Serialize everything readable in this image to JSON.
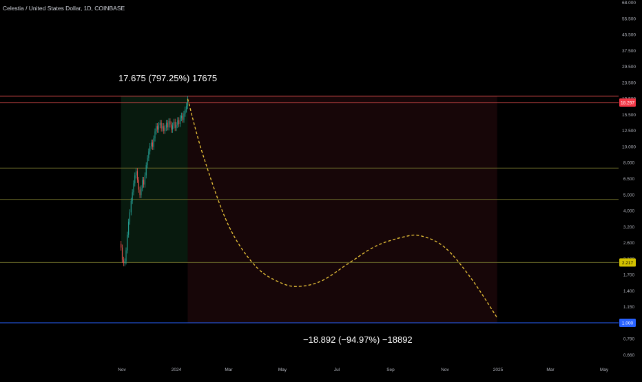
{
  "header": {
    "symbol_title": "Celestia / United States Dollar, 1D, COINBASE"
  },
  "annotations": {
    "gain_measure": "17.675 (797.25%) 17675",
    "loss_measure": "−18.892 (−94.97%) −18892"
  },
  "colors": {
    "background": "#000000",
    "candle_up": "#26a69a",
    "candle_down": "#ef5350",
    "projection": "#f0c93a",
    "resistance_line": "#d84a4a",
    "support_line": "#6b6b2a",
    "base_line": "#2962ff",
    "gain_zone": "#081a0e",
    "loss_zone": "#170608",
    "price_badge_red": "#f23645",
    "price_badge_yellow": "#d4c200",
    "price_badge_blue": "#2962ff"
  },
  "chart_data": {
    "type": "line",
    "price_scale": "log",
    "y_axis_ticks": [
      "68.000",
      "55.500",
      "45.500",
      "37.500",
      "29.500",
      "23.500",
      "19.500",
      "15.500",
      "12.500",
      "10.000",
      "8.000",
      "6.500",
      "5.000",
      "4.000",
      "3.200",
      "2.600",
      "2.100",
      "1.700",
      "1.400",
      "1.150",
      "0.950",
      "0.790",
      "0.660"
    ],
    "x_axis_ticks": [
      "Nov",
      "2024",
      "Mar",
      "May",
      "Jul",
      "Sep",
      "Nov",
      "2025",
      "Mar",
      "May"
    ],
    "price_badges": [
      {
        "label": "18.297",
        "price": 18.297,
        "color_key": "price_badge_red"
      },
      {
        "label": "2.217",
        "price": 2.217,
        "color_key": "price_badge_yellow"
      },
      {
        "label": "1.000",
        "price": 1.0,
        "color_key": "price_badge_blue"
      }
    ],
    "horizontal_lines": [
      {
        "price": 19.9,
        "color_key": "resistance_line"
      },
      {
        "price": 18.297,
        "color_key": "resistance_line"
      },
      {
        "price": 7.7,
        "color_key": "support_line"
      },
      {
        "price": 5.1,
        "color_key": "support_line"
      },
      {
        "price": 2.217,
        "color_key": "support_line"
      },
      {
        "price": 1.0,
        "color_key": "base_line"
      }
    ],
    "zones": [
      {
        "name": "gain",
        "x_start": "2023-10-31",
        "x_end": "2024-01-14",
        "y_low": 2.217,
        "y_high": 19.9,
        "color_key": "gain_zone"
      },
      {
        "name": "loss",
        "x_start": "2024-01-14",
        "x_end": "2024-12-31",
        "y_low": 1.0,
        "y_high": 19.9,
        "color_key": "loss_zone"
      }
    ],
    "price_series": {
      "x_start": "2023-10-31",
      "x_end": "2024-01-14",
      "close": [
        2.7,
        2.3,
        2.2,
        2.25,
        2.6,
        3.2,
        3.8,
        4.3,
        5.0,
        5.6,
        6.3,
        7.0,
        7.4,
        6.6,
        5.8,
        5.4,
        5.9,
        6.6,
        6.2,
        7.0,
        8.0,
        8.8,
        9.6,
        10.3,
        10.8,
        10.2,
        11.4,
        12.5,
        13.4,
        12.8,
        13.6,
        14.0,
        13.0,
        13.4,
        12.6,
        13.1,
        14.0,
        13.2,
        14.3,
        13.7,
        12.8,
        13.5,
        14.2,
        13.1,
        13.6,
        14.5,
        13.8,
        14.9,
        15.4,
        14.6,
        15.8,
        16.7,
        17.5,
        19.2
      ]
    },
    "projection": {
      "style": "dashed",
      "x": [
        "2024-01-14",
        "2024-02-01",
        "2024-03-01",
        "2024-04-01",
        "2024-05-01",
        "2024-05-22",
        "2024-06-15",
        "2024-07-15",
        "2024-08-15",
        "2024-09-15",
        "2024-10-05",
        "2024-11-01",
        "2024-12-01",
        "2024-12-31"
      ],
      "y": [
        19.2,
        9.0,
        3.6,
        2.1,
        1.68,
        1.62,
        1.75,
        2.2,
        2.75,
        3.1,
        3.15,
        2.7,
        1.8,
        1.07
      ]
    }
  }
}
